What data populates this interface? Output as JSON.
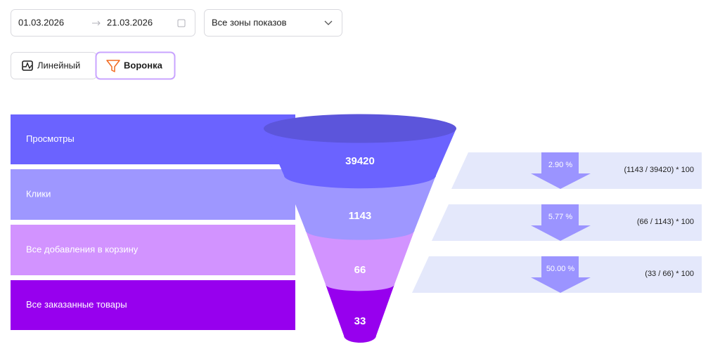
{
  "controls": {
    "date_from": "01.03.2026",
    "date_to": "21.03.2026",
    "zone_select": "Все зоны показов",
    "tabs": [
      "Линейный",
      "Воронка"
    ]
  },
  "chart_data": {
    "type": "funnel",
    "categories": [
      "Просмотры",
      "Клики",
      "Все добавления в корзину",
      "Все заказанные товары"
    ],
    "values": [
      39420,
      1143,
      66,
      33
    ],
    "colors": [
      "#6b63ff",
      "#9e97ff",
      "#d293ff",
      "#9700ee"
    ],
    "conversion_values": [
      2.9,
      5.77,
      50
    ],
    "conversion_value_labels": [
      "2.90 %",
      "5.77 %",
      "50.00 %"
    ],
    "conversion_formulas": [
      "(1143 / 39420) * 100",
      "(66 / 1143) * 100",
      "(33 / 66) * 100"
    ]
  }
}
